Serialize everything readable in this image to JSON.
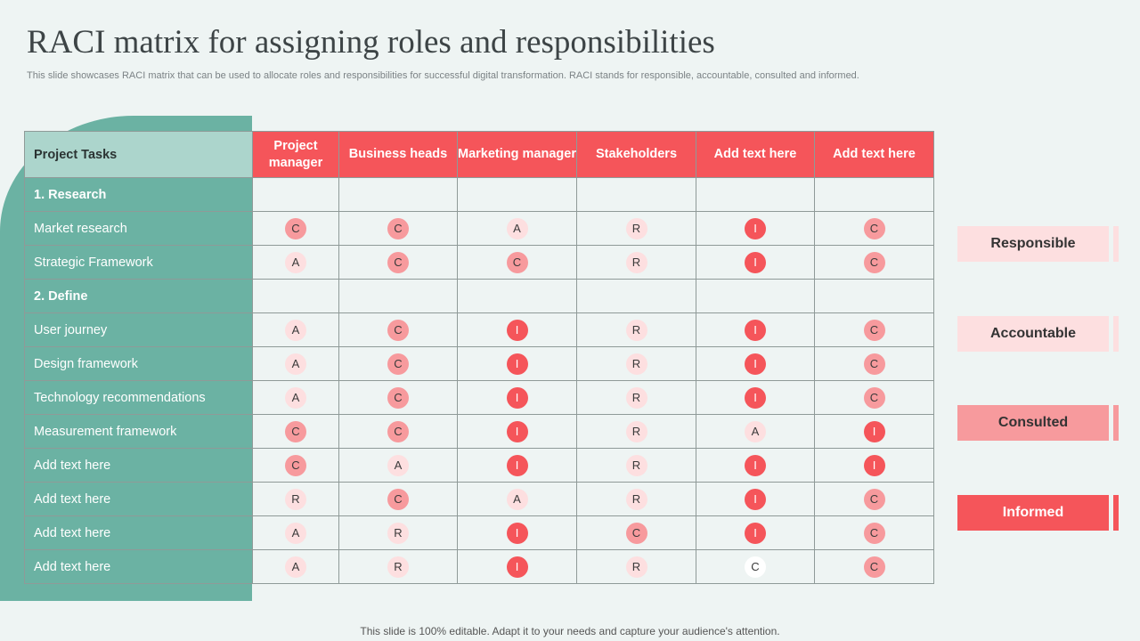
{
  "slide": {
    "title": "RACI matrix for assigning roles and responsibilities",
    "subtitle": "This slide showcases RACI matrix that can be used to allocate roles and responsibilities for successful digital transformation. RACI stands for responsible, accountable, consulted and informed.",
    "footer": "This slide is 100% editable. Adapt it to your needs and capture your audience's attention."
  },
  "colors": {
    "accent_red": "#f5555a",
    "teal": "#6bb2a3",
    "teal_light": "#acd5cc",
    "pink_light": "#fddfe0",
    "pink_mid": "#f79a9d"
  },
  "table": {
    "task_header": "Project Tasks",
    "roles": [
      "Project manager",
      "Business heads",
      "Marketing manager",
      "Stakeholders",
      "Add text here",
      "Add text here"
    ],
    "rows": [
      {
        "task": "1. Research",
        "section": true,
        "cells": []
      },
      {
        "task": "Market research",
        "section": false,
        "cells": [
          "C",
          "C",
          "A",
          "R",
          "I",
          "C"
        ]
      },
      {
        "task": "Strategic Framework",
        "section": false,
        "cells": [
          "A",
          "C",
          "C",
          "R",
          "I",
          "C"
        ]
      },
      {
        "task": "2. Define",
        "section": true,
        "cells": []
      },
      {
        "task": "User journey",
        "section": false,
        "cells": [
          "A",
          "C",
          "I",
          "R",
          "I",
          "C"
        ]
      },
      {
        "task": "Design framework",
        "section": false,
        "cells": [
          "A",
          "C",
          "I",
          "R",
          "I",
          "C"
        ]
      },
      {
        "task": "Technology recommendations",
        "section": false,
        "cells": [
          "A",
          "C",
          "I",
          "R",
          "I",
          "C"
        ]
      },
      {
        "task": "Measurement framework",
        "section": false,
        "cells": [
          "C",
          "C",
          "I",
          "R",
          "A",
          "I"
        ]
      },
      {
        "task": "Add text here",
        "section": false,
        "cells": [
          "C",
          "A",
          "I",
          "R",
          "I",
          "I"
        ]
      },
      {
        "task": "Add text here",
        "section": false,
        "cells": [
          "R",
          "C",
          "A",
          "R",
          "I",
          "C"
        ]
      },
      {
        "task": "Add text here",
        "section": false,
        "cells": [
          "A",
          "R",
          "I",
          "C",
          "I",
          "C"
        ]
      },
      {
        "task": "Add text here",
        "section": false,
        "cells": [
          "A",
          "R",
          "I",
          "R",
          "C*",
          "C"
        ]
      }
    ]
  },
  "legend": [
    {
      "label": "Responsible",
      "color": "#fddfe0"
    },
    {
      "label": "Accountable",
      "color": "#fddfe0"
    },
    {
      "label": "Consulted",
      "color": "#f79a9d"
    },
    {
      "label": "Informed",
      "color": "#f5555a"
    }
  ]
}
